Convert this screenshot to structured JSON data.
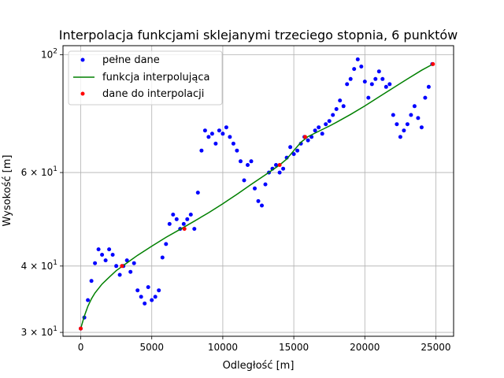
{
  "chart_data": {
    "type": "line",
    "title": "Interpolacja funkcjami sklejanymi trzeciego stopnia, 6 punktów",
    "xlabel": "Odległość [m]",
    "ylabel": "Wysokość [m]",
    "xlim": [
      -1250,
      26250
    ],
    "ylim": [
      29.5,
      104
    ],
    "yscale": "log",
    "grid": true,
    "legend_position": "top-left",
    "x_ticks": [
      0,
      5000,
      10000,
      15000,
      20000,
      25000
    ],
    "x_tick_labels": [
      "0",
      "5000",
      "10000",
      "15000",
      "20000",
      "25000"
    ],
    "y_ticks": [
      30,
      40,
      60,
      100
    ],
    "y_tick_labels": [
      {
        "base": "3 × 10",
        "exp": "1"
      },
      {
        "base": "4 × 10",
        "exp": "1"
      },
      {
        "base": "6 × 10",
        "exp": "1"
      },
      {
        "base": "10",
        "exp": "2"
      }
    ],
    "series": [
      {
        "name": "pełne dane",
        "style": "points",
        "color": "#0000ff",
        "x": [
          0,
          250,
          500,
          750,
          1000,
          1250,
          1500,
          1750,
          2000,
          2250,
          2500,
          2750,
          3000,
          3250,
          3500,
          3750,
          4000,
          4250,
          4500,
          4750,
          5000,
          5250,
          5500,
          5750,
          6000,
          6250,
          6500,
          6750,
          7000,
          7250,
          7500,
          7750,
          8000,
          8250,
          8500,
          8750,
          9000,
          9250,
          9500,
          9750,
          10000,
          10250,
          10500,
          10750,
          11000,
          11250,
          11500,
          11750,
          12000,
          12250,
          12500,
          12750,
          13000,
          13250,
          13500,
          13750,
          14000,
          14250,
          14500,
          14750,
          15000,
          15250,
          15500,
          15750,
          16000,
          16250,
          16500,
          16750,
          17000,
          17250,
          17500,
          17750,
          18000,
          18250,
          18500,
          18750,
          19000,
          19250,
          19500,
          19750,
          20000,
          20250,
          20500,
          20750,
          21000,
          21250,
          21500,
          21750,
          22000,
          22250,
          22500,
          22750,
          23000,
          23250,
          23500,
          23750,
          24000,
          24250,
          24500,
          24750
        ],
        "y": [
          30.5,
          32,
          34.5,
          37.5,
          40.5,
          43,
          42,
          41,
          43,
          42,
          40,
          38.5,
          40,
          41,
          39,
          40.5,
          36,
          35,
          34,
          36.5,
          34.5,
          35,
          36,
          41.5,
          44,
          48,
          50,
          49,
          47,
          48,
          49,
          50,
          47,
          55,
          66,
          72,
          70,
          71,
          68,
          72,
          71,
          73,
          70,
          68,
          66,
          63,
          58,
          62,
          63,
          56,
          53,
          52,
          57,
          60,
          61,
          62,
          60,
          61,
          64,
          67,
          65,
          66,
          68,
          70,
          69,
          70,
          72,
          73,
          71,
          74,
          75,
          77,
          79,
          82,
          80,
          88,
          90,
          94,
          98,
          95,
          89,
          83,
          88,
          90,
          93,
          90,
          87,
          88,
          77,
          74,
          70,
          72,
          74,
          77,
          80,
          76,
          73,
          83,
          87,
          96
        ]
      },
      {
        "name": "funkcja interpolująca",
        "style": "line",
        "color": "#008000",
        "x": [
          0,
          250,
          500,
          750,
          1000,
          1500,
          2000,
          2500,
          3000,
          3500,
          4000,
          5000,
          6000,
          7000,
          8000,
          9000,
          10000,
          11000,
          12000,
          13000,
          14000,
          14500,
          15000,
          15500,
          16000,
          16500,
          17000,
          17500,
          18000,
          19000,
          20000,
          21000,
          22000,
          23000,
          24000,
          24800
        ],
        "y": [
          30.5,
          32.2,
          33.6,
          34.7,
          35.6,
          37,
          38.1,
          39.2,
          40.1,
          41,
          41.9,
          43.6,
          45.3,
          46.9,
          48.6,
          50.4,
          52.4,
          54.6,
          57,
          59.4,
          62,
          63.6,
          66,
          68.4,
          70.1,
          71.2,
          72.3,
          73.4,
          74.6,
          77.2,
          80.1,
          83.3,
          86.6,
          90,
          93.5,
          96
        ]
      },
      {
        "name": "dane do interpolacji",
        "style": "points",
        "color": "#ff0000",
        "x": [
          0,
          2900,
          7300,
          14000,
          15800,
          24800
        ],
        "y": [
          30.5,
          40,
          47,
          62,
          70,
          96
        ]
      }
    ]
  }
}
